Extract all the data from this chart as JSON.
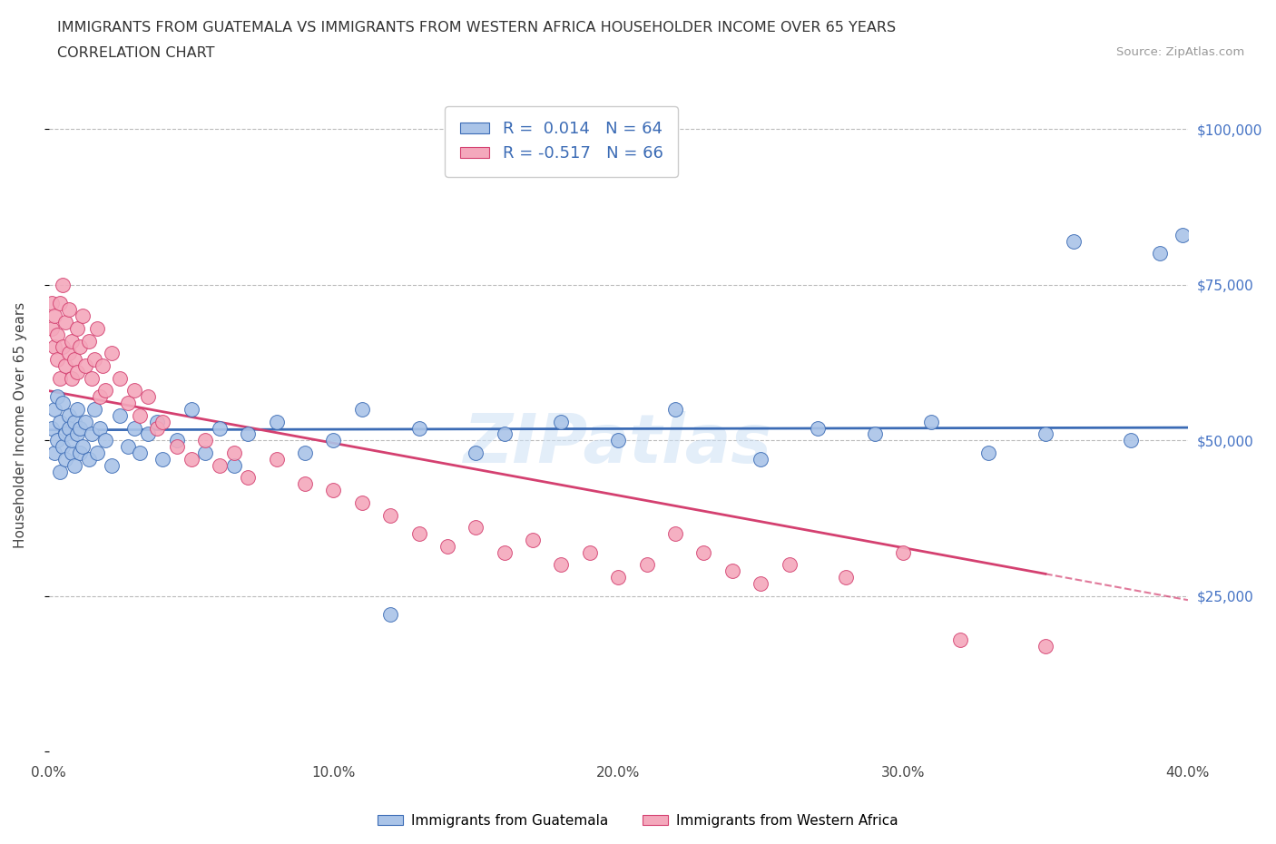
{
  "title_line1": "IMMIGRANTS FROM GUATEMALA VS IMMIGRANTS FROM WESTERN AFRICA HOUSEHOLDER INCOME OVER 65 YEARS",
  "title_line2": "CORRELATION CHART",
  "source_text": "Source: ZipAtlas.com",
  "ylabel": "Householder Income Over 65 years",
  "xlim": [
    0.0,
    0.4
  ],
  "ylim": [
    0,
    105000
  ],
  "yticks": [
    0,
    25000,
    50000,
    75000,
    100000
  ],
  "xticks": [
    0.0,
    0.1,
    0.2,
    0.3,
    0.4
  ],
  "xtick_labels": [
    "0.0%",
    "10.0%",
    "20.0%",
    "30.0%",
    "40.0%"
  ],
  "legend_bottom": [
    "Immigrants from Guatemala",
    "Immigrants from Western Africa"
  ],
  "r_blue": 0.014,
  "n_blue": 64,
  "r_pink": -0.517,
  "n_pink": 66,
  "color_blue": "#aac4e8",
  "color_pink": "#f4a8bc",
  "line_blue": "#3b6bb5",
  "line_pink": "#d44070",
  "watermark": "ZIPatlas",
  "blue_x": [
    0.001,
    0.002,
    0.002,
    0.003,
    0.003,
    0.004,
    0.004,
    0.005,
    0.005,
    0.006,
    0.006,
    0.007,
    0.007,
    0.008,
    0.008,
    0.009,
    0.009,
    0.01,
    0.01,
    0.011,
    0.011,
    0.012,
    0.013,
    0.014,
    0.015,
    0.016,
    0.017,
    0.018,
    0.02,
    0.022,
    0.025,
    0.028,
    0.03,
    0.032,
    0.035,
    0.038,
    0.04,
    0.045,
    0.05,
    0.055,
    0.06,
    0.065,
    0.07,
    0.08,
    0.09,
    0.1,
    0.11,
    0.12,
    0.13,
    0.15,
    0.16,
    0.18,
    0.2,
    0.22,
    0.25,
    0.27,
    0.29,
    0.31,
    0.33,
    0.35,
    0.36,
    0.38,
    0.39,
    0.398
  ],
  "blue_y": [
    52000,
    48000,
    55000,
    50000,
    57000,
    45000,
    53000,
    49000,
    56000,
    51000,
    47000,
    54000,
    52000,
    48000,
    50000,
    46000,
    53000,
    51000,
    55000,
    48000,
    52000,
    49000,
    53000,
    47000,
    51000,
    55000,
    48000,
    52000,
    50000,
    46000,
    54000,
    49000,
    52000,
    48000,
    51000,
    53000,
    47000,
    50000,
    55000,
    48000,
    52000,
    46000,
    51000,
    53000,
    48000,
    50000,
    55000,
    22000,
    52000,
    48000,
    51000,
    53000,
    50000,
    55000,
    47000,
    52000,
    51000,
    53000,
    48000,
    51000,
    82000,
    50000,
    80000,
    83000
  ],
  "pink_x": [
    0.001,
    0.001,
    0.002,
    0.002,
    0.003,
    0.003,
    0.004,
    0.004,
    0.005,
    0.005,
    0.006,
    0.006,
    0.007,
    0.007,
    0.008,
    0.008,
    0.009,
    0.01,
    0.01,
    0.011,
    0.012,
    0.013,
    0.014,
    0.015,
    0.016,
    0.017,
    0.018,
    0.019,
    0.02,
    0.022,
    0.025,
    0.028,
    0.03,
    0.032,
    0.035,
    0.038,
    0.04,
    0.045,
    0.05,
    0.055,
    0.06,
    0.065,
    0.07,
    0.08,
    0.09,
    0.1,
    0.11,
    0.12,
    0.13,
    0.14,
    0.15,
    0.16,
    0.17,
    0.18,
    0.19,
    0.2,
    0.21,
    0.22,
    0.23,
    0.24,
    0.25,
    0.26,
    0.28,
    0.3,
    0.32,
    0.35
  ],
  "pink_y": [
    68000,
    72000,
    65000,
    70000,
    63000,
    67000,
    72000,
    60000,
    65000,
    75000,
    62000,
    69000,
    64000,
    71000,
    60000,
    66000,
    63000,
    68000,
    61000,
    65000,
    70000,
    62000,
    66000,
    60000,
    63000,
    68000,
    57000,
    62000,
    58000,
    64000,
    60000,
    56000,
    58000,
    54000,
    57000,
    52000,
    53000,
    49000,
    47000,
    50000,
    46000,
    48000,
    44000,
    47000,
    43000,
    42000,
    40000,
    38000,
    35000,
    33000,
    36000,
    32000,
    34000,
    30000,
    32000,
    28000,
    30000,
    35000,
    32000,
    29000,
    27000,
    30000,
    28000,
    32000,
    18000,
    17000
  ]
}
